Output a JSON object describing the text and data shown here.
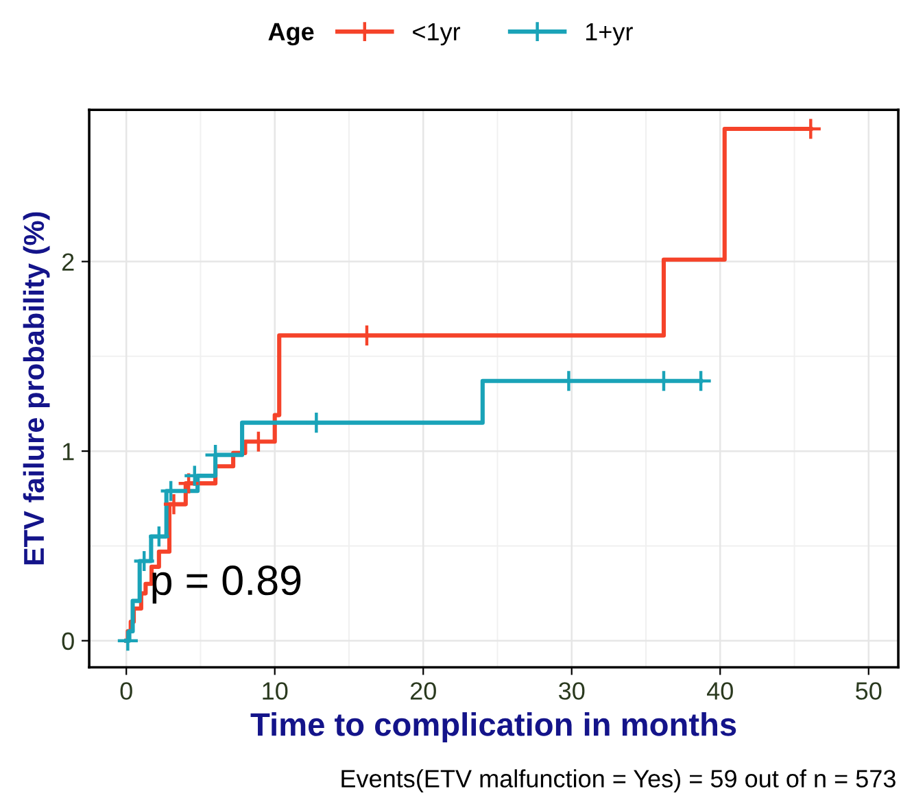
{
  "chart_data": {
    "type": "step",
    "xlabel": "Time to complication in months",
    "ylabel": "ETV failure probability (%)",
    "legend_title": "Age",
    "legend": "top",
    "grid": true,
    "xlim": [
      -2.5,
      52
    ],
    "ylim": [
      -0.14,
      2.8
    ],
    "xticks": [
      0,
      10,
      20,
      30,
      40,
      50
    ],
    "yticks": [
      0,
      1,
      2
    ],
    "annotations": [
      "p = 0.89",
      "Events(ETV malfunction = Yes) = 59 out of n = 573"
    ],
    "series": [
      {
        "name": "<1yr",
        "color": "#f5432a",
        "marker": "none",
        "x": [
          0,
          0.1,
          0.3,
          0.5,
          1.0,
          1.3,
          1.7,
          2.2,
          2.9,
          4.0,
          6.0,
          7.2,
          8.0,
          10.0,
          10.3,
          36.2,
          40.3,
          46.1
        ],
        "values": [
          0,
          0.05,
          0.1,
          0.17,
          0.25,
          0.3,
          0.39,
          0.47,
          0.72,
          0.83,
          0.92,
          0.99,
          1.05,
          1.19,
          1.61,
          2.01,
          2.7,
          2.7
        ]
      },
      {
        "name": "1+yr",
        "color": "#1aa3b8",
        "marker": "none",
        "x": [
          0,
          0.2,
          0.43,
          0.9,
          1.67,
          2.7,
          4.8,
          6.0,
          7.8,
          24.0,
          38.7
        ],
        "values": [
          0,
          0.05,
          0.21,
          0.42,
          0.55,
          0.79,
          0.87,
          0.98,
          1.15,
          1.37,
          1.37
        ]
      },
      {
        "color": "#f5432a",
        "type": "scatter",
        "marker": "cross",
        "x": [
          3.2,
          4.2,
          8.9,
          16.2,
          46.1
        ],
        "values": [
          0.72,
          0.83,
          1.05,
          1.61,
          2.7
        ]
      },
      {
        "color": "#1aa3b8",
        "type": "scatter",
        "marker": "cross",
        "x": [
          0.1,
          1.2,
          2.2,
          3.0,
          4.6,
          6.0,
          12.8,
          29.8,
          36.2,
          38.7
        ],
        "values": [
          0.0,
          0.42,
          0.55,
          0.79,
          0.87,
          0.98,
          1.15,
          1.37,
          1.37,
          1.37
        ]
      }
    ]
  }
}
